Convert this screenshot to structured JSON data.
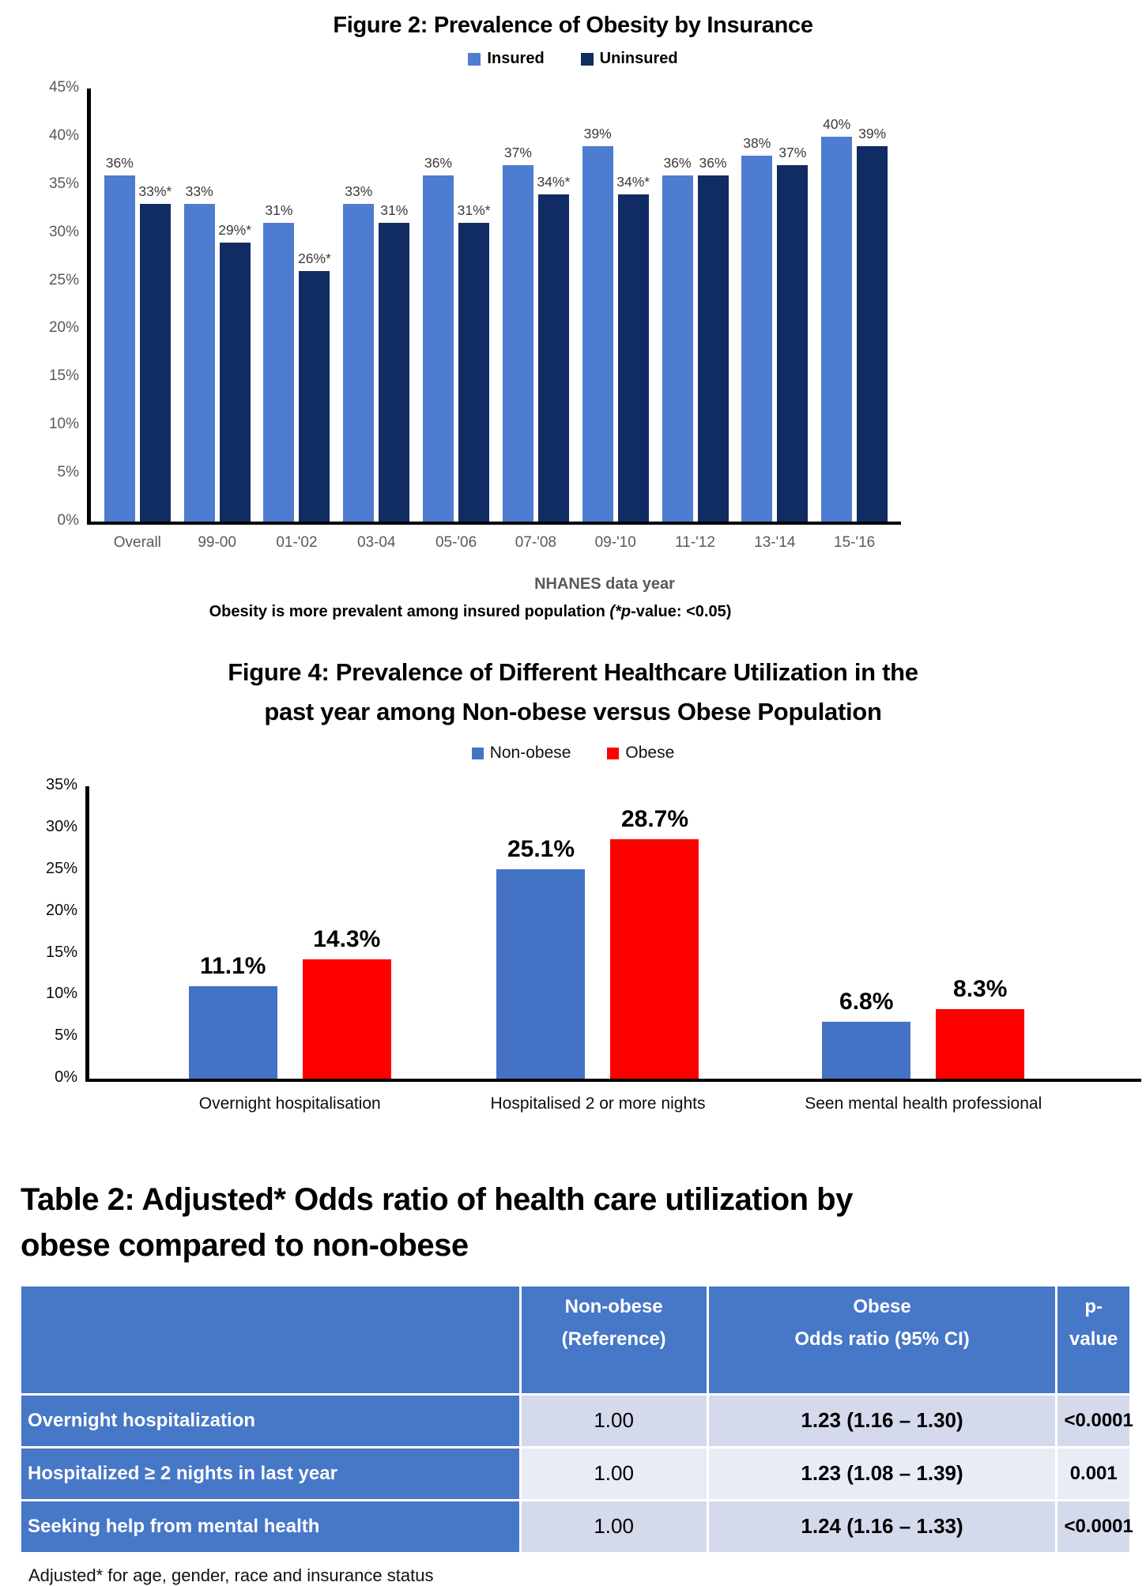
{
  "figure2_caption": {
    "text": "Obesity is more prevalent among insured population ",
    "italic": "(*p",
    "rest": "-value: <0.05)"
  },
  "chart_data": [
    {
      "id": "fig2",
      "type": "bar",
      "title": "Figure 2: Prevalence of Obesity by Insurance",
      "categories": [
        "Overall",
        "99-00",
        "01-'02",
        "03-04",
        "05-'06",
        "07-'08",
        "09-'10",
        "11-'12",
        "13-'14",
        "15-'16"
      ],
      "series": [
        {
          "name": "Insured",
          "color": "#4E7CD0",
          "values": [
            36,
            33,
            31,
            33,
            36,
            37,
            39,
            36,
            38,
            40
          ],
          "labels": [
            "36%",
            "33%",
            "31%",
            "33%",
            "36%",
            "37%",
            "39%",
            "36%",
            "38%",
            "40%"
          ]
        },
        {
          "name": "Uninsured",
          "color": "#112B63",
          "values": [
            33,
            29,
            26,
            31,
            31,
            34,
            34,
            36,
            37,
            39
          ],
          "labels": [
            "33%*",
            "29%*",
            "26%*",
            "31%",
            "31%*",
            "34%*",
            "34%*",
            "36%",
            "37%",
            "39%"
          ]
        }
      ],
      "ylim": [
        0,
        45
      ],
      "ytick_step": 5,
      "ytick_suffix": "%",
      "xlabel": "NHANES data year",
      "grid": false,
      "legend_position": "top"
    },
    {
      "id": "fig4",
      "type": "bar",
      "title": "Figure 4: Prevalence of Different Healthcare Utilization in the past year among Non-obese versus Obese Population",
      "categories": [
        "Overnight hospitalisation",
        "Hospitalised 2 or more nights",
        "Seen mental health professional"
      ],
      "series": [
        {
          "name": "Non-obese",
          "color": "#4472C4",
          "values": [
            11.1,
            25.1,
            6.8
          ],
          "labels": [
            "11.1%",
            "25.1%",
            "6.8%"
          ]
        },
        {
          "name": "Obese",
          "color": "#FF0000",
          "values": [
            14.3,
            28.7,
            8.3
          ],
          "labels": [
            "14.3%",
            "28.7%",
            "8.3%"
          ]
        }
      ],
      "ylim": [
        0,
        35
      ],
      "ytick_step": 5,
      "ytick_suffix": "%",
      "xlabel": "",
      "grid": false,
      "legend_position": "top"
    },
    {
      "id": "table2",
      "type": "table",
      "title": "Table 2: Adjusted* Odds ratio of health care utilization by obese compared to non-obese",
      "columns": [
        {
          "l1": "",
          "l2": ""
        },
        {
          "l1": "Non-obese",
          "l2": "(Reference)"
        },
        {
          "l1": "Obese",
          "l2": "Odds ratio (95% CI)"
        },
        {
          "l1": "p-value",
          "l2": ""
        }
      ],
      "rows": [
        [
          "Overnight hospitalization",
          "1.00",
          "1.23 (1.16 – 1.30)",
          "<0.0001"
        ],
        [
          "Hospitalized ≥ 2 nights in last year",
          "1.00",
          "1.23 (1.08 – 1.39)",
          "0.001"
        ],
        [
          "Seeking help from mental health",
          "1.00",
          "1.24 (1.16 – 1.33)",
          "<0.0001"
        ]
      ],
      "footnote": "Adjusted* for age, gender, race and insurance status",
      "colors": {
        "header_bg": "#4777C7",
        "band_a": "#D4D9EC",
        "band_b": "#E9EBF5"
      }
    }
  ]
}
